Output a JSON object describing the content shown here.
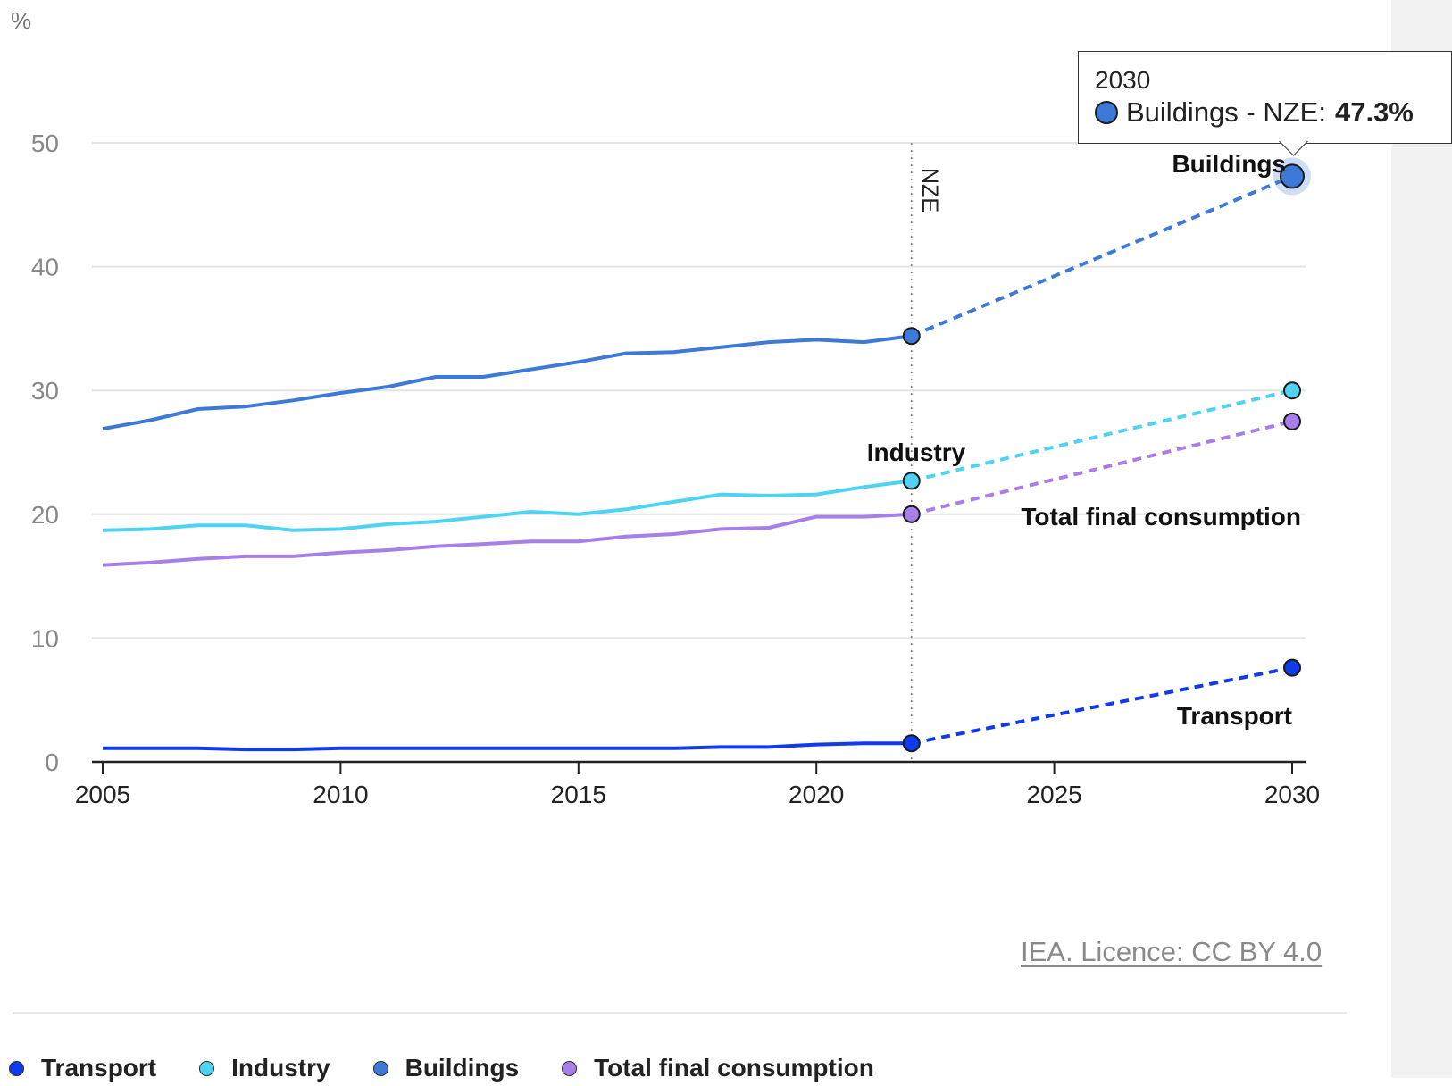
{
  "chart_data": {
    "type": "line",
    "ylabel": "%",
    "ylim": [
      0,
      50
    ],
    "yticks": [
      0,
      10,
      20,
      30,
      40,
      50
    ],
    "xlim": [
      2005,
      2030
    ],
    "xticks": [
      2005,
      2010,
      2015,
      2020,
      2025,
      2030
    ],
    "grid": true,
    "marker_line_label": "NZE",
    "marker_line_year": 2022,
    "series": [
      {
        "name": "Transport",
        "color": "#0f3bea",
        "x": [
          2005,
          2006,
          2007,
          2008,
          2009,
          2010,
          2011,
          2012,
          2013,
          2014,
          2015,
          2016,
          2017,
          2018,
          2019,
          2020,
          2021,
          2022
        ],
        "values": [
          1.1,
          1.1,
          1.1,
          1.0,
          1.0,
          1.1,
          1.1,
          1.1,
          1.1,
          1.1,
          1.1,
          1.1,
          1.1,
          1.2,
          1.2,
          1.4,
          1.5,
          1.5
        ],
        "projection": {
          "x": [
            2022,
            2030
          ],
          "values": [
            1.5,
            7.6
          ]
        }
      },
      {
        "name": "Industry",
        "color": "#4ed3f2",
        "x": [
          2005,
          2006,
          2007,
          2008,
          2009,
          2010,
          2011,
          2012,
          2013,
          2014,
          2015,
          2016,
          2017,
          2018,
          2019,
          2020,
          2021,
          2022
        ],
        "values": [
          18.7,
          18.8,
          19.1,
          19.1,
          18.7,
          18.8,
          19.2,
          19.4,
          19.8,
          20.2,
          20.0,
          20.4,
          21.0,
          21.6,
          21.5,
          21.6,
          22.2,
          22.7
        ],
        "projection": {
          "x": [
            2022,
            2030
          ],
          "values": [
            22.7,
            30.0
          ]
        }
      },
      {
        "name": "Buildings",
        "color": "#3d7ad7",
        "x": [
          2005,
          2006,
          2007,
          2008,
          2009,
          2010,
          2011,
          2012,
          2013,
          2014,
          2015,
          2016,
          2017,
          2018,
          2019,
          2020,
          2021,
          2022
        ],
        "values": [
          26.9,
          27.6,
          28.5,
          28.7,
          29.2,
          29.8,
          30.3,
          31.1,
          31.1,
          31.7,
          32.3,
          33.0,
          33.1,
          33.5,
          33.9,
          34.1,
          33.9,
          34.4
        ],
        "projection": {
          "x": [
            2022,
            2030
          ],
          "values": [
            34.4,
            47.3
          ]
        }
      },
      {
        "name": "Total final consumption",
        "color": "#a77fe8",
        "x": [
          2005,
          2006,
          2007,
          2008,
          2009,
          2010,
          2011,
          2012,
          2013,
          2014,
          2015,
          2016,
          2017,
          2018,
          2019,
          2020,
          2021,
          2022
        ],
        "values": [
          15.9,
          16.1,
          16.4,
          16.6,
          16.6,
          16.9,
          17.1,
          17.4,
          17.6,
          17.8,
          17.8,
          18.2,
          18.4,
          18.8,
          18.9,
          19.8,
          19.8,
          20.0
        ],
        "projection": {
          "x": [
            2022,
            2030
          ],
          "values": [
            20.0,
            27.5
          ]
        }
      }
    ],
    "inline_labels": [
      "Buildings",
      "Industry",
      "Total final consumption",
      "Transport"
    ]
  },
  "tooltip": {
    "year": "2030",
    "series_label": "Buildings - NZE:",
    "value": "47.3%",
    "color": "#3d7ad7"
  },
  "credit": "IEA. Licence: CC BY 4.0",
  "legend": [
    {
      "label": "Transport",
      "color": "#0f3bea"
    },
    {
      "label": "Industry",
      "color": "#4ed3f2"
    },
    {
      "label": "Buildings",
      "color": "#3d7ad7"
    },
    {
      "label": "Total final consumption",
      "color": "#a77fe8"
    }
  ]
}
